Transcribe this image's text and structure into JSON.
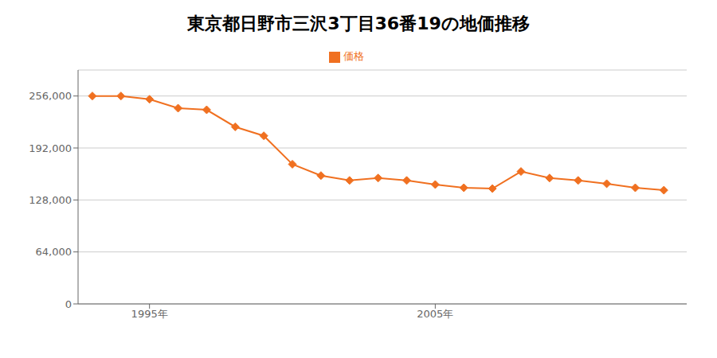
{
  "chart_data": {
    "type": "line",
    "title": "東京都日野市三沢3丁目36番19の地価推移",
    "x": [
      1993,
      1994,
      1995,
      1996,
      1997,
      1998,
      1999,
      2000,
      2001,
      2002,
      2003,
      2004,
      2005,
      2006,
      2007,
      2008,
      2009,
      2010,
      2011,
      2012,
      2013
    ],
    "series": [
      {
        "name": "価格",
        "color": "#f07020",
        "marker": "diamond",
        "values": [
          256000,
          256000,
          252000,
          241000,
          239000,
          218000,
          207000,
          172000,
          158000,
          152000,
          155000,
          152000,
          147000,
          143000,
          142000,
          163000,
          155000,
          152000,
          148000,
          143000,
          140000
        ]
      }
    ],
    "xlim": [
      1992.5,
      2013.8
    ],
    "xticks": [
      {
        "value": 1995,
        "label": "1995年"
      },
      {
        "value": 2005,
        "label": "2005年"
      }
    ],
    "ylim": [
      0,
      288000
    ],
    "yticks": [
      0,
      {
        "value": 64000,
        "label": "64,000"
      },
      {
        "value": 128000,
        "label": "128,000"
      },
      {
        "value": 192000,
        "label": "192,000"
      },
      {
        "value": 256000,
        "label": "256,000"
      }
    ],
    "grid": true,
    "legend": "top"
  }
}
